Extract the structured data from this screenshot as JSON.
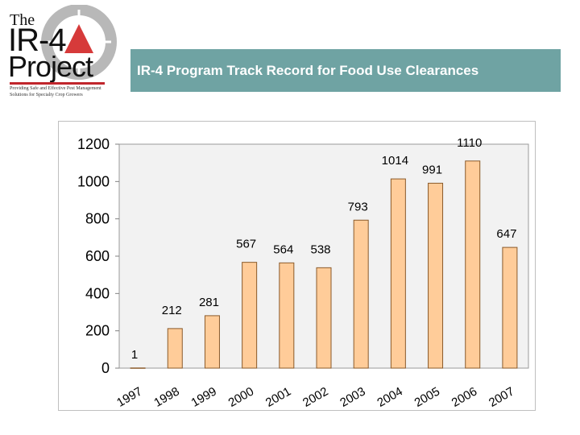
{
  "logo": {
    "the": "The",
    "ir4": "IR-4",
    "project": "Project",
    "tagline": "Providing Safe and Effective Pest Management Solutions for Specialty Crop Growers"
  },
  "header": {
    "title": "IR-4 Program Track Record for Food Use Clearances"
  },
  "colors": {
    "title_bar": "#6fa3a3",
    "bar_fill": "#ffcc99",
    "bar_stroke": "#8a5a2a",
    "plot_bg": "#f2f2f2"
  },
  "chart_data": {
    "type": "bar",
    "title": "",
    "xlabel": "",
    "ylabel": "",
    "categories": [
      "1997",
      "1998",
      "1999",
      "2000",
      "2001",
      "2002",
      "2003",
      "2004",
      "2005",
      "2006",
      "2007"
    ],
    "values": [
      1,
      212,
      281,
      567,
      564,
      538,
      793,
      1014,
      991,
      1110,
      647
    ],
    "ylim": [
      0,
      1200
    ],
    "yticks": [
      0,
      200,
      400,
      600,
      800,
      1000,
      1200
    ],
    "grid": false,
    "legend": "none"
  }
}
